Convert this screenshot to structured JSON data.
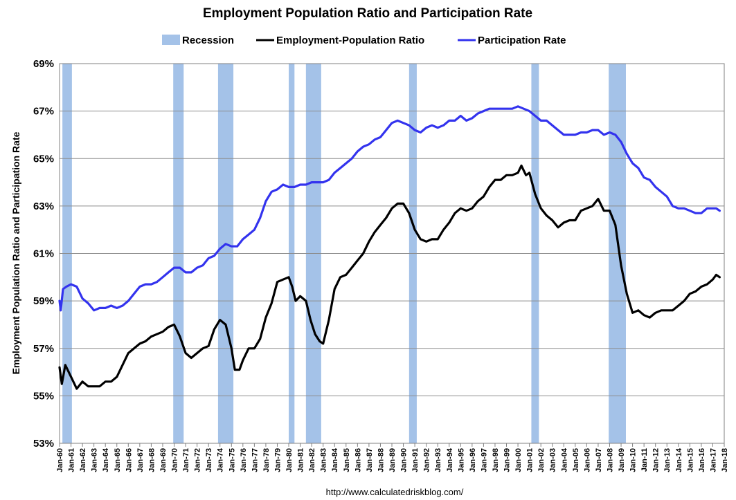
{
  "chart_data": {
    "type": "line",
    "title": "Employment Population Ratio and Participation Rate",
    "ylabel": "Employment Population Ratio and Participation Rate",
    "xlabel": "",
    "source": "http://www.calculatedriskblog.com/",
    "ylim": [
      53,
      69
    ],
    "xlim": [
      1960,
      2018
    ],
    "y_ticks": [
      53,
      55,
      57,
      59,
      61,
      63,
      65,
      67,
      69
    ],
    "y_tick_labels": [
      "53%",
      "55%",
      "57%",
      "59%",
      "61%",
      "63%",
      "65%",
      "67%",
      "69%"
    ],
    "x_ticks": [
      "Jan-60",
      "Jan-61",
      "Jan-62",
      "Jan-63",
      "Jan-64",
      "Jan-65",
      "Jan-66",
      "Jan-67",
      "Jan-68",
      "Jan-69",
      "Jan-70",
      "Jan-71",
      "Jan-72",
      "Jan-73",
      "Jan-74",
      "Jan-75",
      "Jan-76",
      "Jan-77",
      "Jan-78",
      "Jan-79",
      "Jan-80",
      "Jan-81",
      "Jan-82",
      "Jan-83",
      "Jan-84",
      "Jan-85",
      "Jan-86",
      "Jan-87",
      "Jan-88",
      "Jan-89",
      "Jan-90",
      "Jan-91",
      "Jan-92",
      "Jan-93",
      "Jan-94",
      "Jan-95",
      "Jan-96",
      "Jan-97",
      "Jan-98",
      "Jan-99",
      "Jan-00",
      "Jan-01",
      "Jan-02",
      "Jan-03",
      "Jan-04",
      "Jan-05",
      "Jan-06",
      "Jan-07",
      "Jan-08",
      "Jan-09",
      "Jan-10",
      "Jan-11",
      "Jan-12",
      "Jan-13",
      "Jan-14",
      "Jan-15",
      "Jan-16",
      "Jan-17",
      "Jan-18"
    ],
    "grid": true,
    "legend_position": "top-center",
    "legend": [
      {
        "name": "Recession",
        "kind": "band",
        "color": "#a4c2e8"
      },
      {
        "name": "Employment-Population Ratio",
        "kind": "line",
        "color": "#000000"
      },
      {
        "name": "Participation Rate",
        "kind": "line",
        "color": "#3333ee"
      }
    ],
    "recessions": [
      {
        "start": 1960.25,
        "end": 1961.08
      },
      {
        "start": 1969.92,
        "end": 1970.83
      },
      {
        "start": 1973.83,
        "end": 1975.17
      },
      {
        "start": 1980.0,
        "end": 1980.5
      },
      {
        "start": 1981.5,
        "end": 1982.83
      },
      {
        "start": 1990.5,
        "end": 1991.17
      },
      {
        "start": 2001.17,
        "end": 2001.83
      },
      {
        "start": 2007.92,
        "end": 2009.42
      }
    ],
    "series": [
      {
        "name": "Employment-Population Ratio",
        "color": "#000000",
        "x": [
          1960.0,
          1960.2,
          1960.5,
          1961.0,
          1961.5,
          1962.0,
          1962.5,
          1963.0,
          1963.5,
          1964.0,
          1964.5,
          1965.0,
          1965.5,
          1966.0,
          1966.5,
          1967.0,
          1967.5,
          1968.0,
          1968.5,
          1969.0,
          1969.5,
          1970.0,
          1970.5,
          1971.0,
          1971.5,
          1972.0,
          1972.5,
          1973.0,
          1973.5,
          1974.0,
          1974.5,
          1975.0,
          1975.3,
          1975.7,
          1976.0,
          1976.5,
          1977.0,
          1977.5,
          1978.0,
          1978.5,
          1979.0,
          1979.5,
          1980.0,
          1980.3,
          1980.6,
          1981.0,
          1981.5,
          1981.9,
          1982.3,
          1982.7,
          1983.0,
          1983.5,
          1984.0,
          1984.5,
          1985.0,
          1985.5,
          1986.0,
          1986.5,
          1987.0,
          1987.5,
          1988.0,
          1988.5,
          1989.0,
          1989.5,
          1990.0,
          1990.5,
          1991.0,
          1991.5,
          1992.0,
          1992.5,
          1993.0,
          1993.5,
          1994.0,
          1994.5,
          1995.0,
          1995.5,
          1996.0,
          1996.5,
          1997.0,
          1997.5,
          1998.0,
          1998.5,
          1999.0,
          1999.5,
          2000.0,
          2000.3,
          2000.7,
          2001.0,
          2001.5,
          2002.0,
          2002.5,
          2003.0,
          2003.5,
          2004.0,
          2004.5,
          2005.0,
          2005.5,
          2006.0,
          2006.5,
          2007.0,
          2007.5,
          2008.0,
          2008.5,
          2009.0,
          2009.5,
          2010.0,
          2010.5,
          2011.0,
          2011.5,
          2012.0,
          2012.5,
          2013.0,
          2013.5,
          2014.0,
          2014.5,
          2015.0,
          2015.5,
          2016.0,
          2016.5,
          2017.0,
          2017.3,
          2017.6
        ],
        "values": [
          56.2,
          55.5,
          56.3,
          55.8,
          55.3,
          55.6,
          55.4,
          55.4,
          55.4,
          55.6,
          55.6,
          55.8,
          56.3,
          56.8,
          57.0,
          57.2,
          57.3,
          57.5,
          57.6,
          57.7,
          57.9,
          58.0,
          57.5,
          56.8,
          56.6,
          56.8,
          57.0,
          57.1,
          57.8,
          58.2,
          58.0,
          57.0,
          56.1,
          56.1,
          56.5,
          57.0,
          57.0,
          57.4,
          58.3,
          58.9,
          59.8,
          59.9,
          60.0,
          59.6,
          59.0,
          59.2,
          59.0,
          58.2,
          57.6,
          57.3,
          57.2,
          58.2,
          59.5,
          60.0,
          60.1,
          60.4,
          60.7,
          61.0,
          61.5,
          61.9,
          62.2,
          62.5,
          62.9,
          63.1,
          63.1,
          62.7,
          62.0,
          61.6,
          61.5,
          61.6,
          61.6,
          62.0,
          62.3,
          62.7,
          62.9,
          62.8,
          62.9,
          63.2,
          63.4,
          63.8,
          64.1,
          64.1,
          64.3,
          64.3,
          64.4,
          64.7,
          64.3,
          64.4,
          63.5,
          62.9,
          62.6,
          62.4,
          62.1,
          62.3,
          62.4,
          62.4,
          62.8,
          62.9,
          63.0,
          63.3,
          62.8,
          62.8,
          62.2,
          60.5,
          59.3,
          58.5,
          58.6,
          58.4,
          58.3,
          58.5,
          58.6,
          58.6,
          58.6,
          58.8,
          59.0,
          59.3,
          59.4,
          59.6,
          59.7,
          59.9,
          60.1,
          60.0
        ]
      },
      {
        "name": "Participation Rate",
        "color": "#3333ee",
        "x": [
          1960.0,
          1960.1,
          1960.3,
          1960.6,
          1961.0,
          1961.5,
          1962.0,
          1962.5,
          1963.0,
          1963.5,
          1964.0,
          1964.5,
          1965.0,
          1965.5,
          1966.0,
          1966.5,
          1967.0,
          1967.5,
          1968.0,
          1968.5,
          1969.0,
          1969.5,
          1970.0,
          1970.5,
          1971.0,
          1971.5,
          1972.0,
          1972.5,
          1973.0,
          1973.5,
          1974.0,
          1974.5,
          1975.0,
          1975.5,
          1976.0,
          1976.5,
          1977.0,
          1977.5,
          1978.0,
          1978.5,
          1979.0,
          1979.5,
          1980.0,
          1980.5,
          1981.0,
          1981.5,
          1982.0,
          1982.5,
          1983.0,
          1983.5,
          1984.0,
          1984.5,
          1985.0,
          1985.5,
          1986.0,
          1986.5,
          1987.0,
          1987.5,
          1988.0,
          1988.5,
          1989.0,
          1989.5,
          1990.0,
          1990.5,
          1991.0,
          1991.5,
          1992.0,
          1992.5,
          1993.0,
          1993.5,
          1994.0,
          1994.5,
          1995.0,
          1995.5,
          1996.0,
          1996.5,
          1997.0,
          1997.5,
          1998.0,
          1998.5,
          1999.0,
          1999.5,
          2000.0,
          2000.5,
          2001.0,
          2001.5,
          2002.0,
          2002.5,
          2003.0,
          2003.5,
          2004.0,
          2004.5,
          2005.0,
          2005.5,
          2006.0,
          2006.5,
          2007.0,
          2007.5,
          2008.0,
          2008.5,
          2009.0,
          2009.5,
          2010.0,
          2010.5,
          2011.0,
          2011.5,
          2012.0,
          2012.5,
          2013.0,
          2013.5,
          2014.0,
          2014.5,
          2015.0,
          2015.5,
          2016.0,
          2016.5,
          2017.0,
          2017.3,
          2017.6
        ],
        "values": [
          59.0,
          58.6,
          59.5,
          59.6,
          59.7,
          59.6,
          59.1,
          58.9,
          58.6,
          58.7,
          58.7,
          58.8,
          58.7,
          58.8,
          59.0,
          59.3,
          59.6,
          59.7,
          59.7,
          59.8,
          60.0,
          60.2,
          60.4,
          60.4,
          60.2,
          60.2,
          60.4,
          60.5,
          60.8,
          60.9,
          61.2,
          61.4,
          61.3,
          61.3,
          61.6,
          61.8,
          62.0,
          62.5,
          63.2,
          63.6,
          63.7,
          63.9,
          63.8,
          63.8,
          63.9,
          63.9,
          64.0,
          64.0,
          64.0,
          64.1,
          64.4,
          64.6,
          64.8,
          65.0,
          65.3,
          65.5,
          65.6,
          65.8,
          65.9,
          66.2,
          66.5,
          66.6,
          66.5,
          66.4,
          66.2,
          66.1,
          66.3,
          66.4,
          66.3,
          66.4,
          66.6,
          66.6,
          66.8,
          66.6,
          66.7,
          66.9,
          67.0,
          67.1,
          67.1,
          67.1,
          67.1,
          67.1,
          67.2,
          67.1,
          67.0,
          66.8,
          66.6,
          66.6,
          66.4,
          66.2,
          66.0,
          66.0,
          66.0,
          66.1,
          66.1,
          66.2,
          66.2,
          66.0,
          66.1,
          66.0,
          65.7,
          65.2,
          64.8,
          64.6,
          64.2,
          64.1,
          63.8,
          63.6,
          63.4,
          63.0,
          62.9,
          62.9,
          62.8,
          62.7,
          62.7,
          62.9,
          62.9,
          62.9,
          62.8
        ]
      }
    ]
  }
}
